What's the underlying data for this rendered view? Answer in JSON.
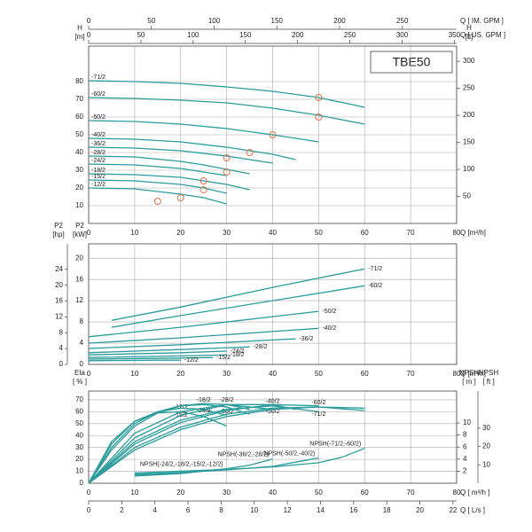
{
  "chart_data": [
    {
      "type": "line",
      "title": "TBE50",
      "color": "#2b9c9c",
      "grid": true,
      "x_label": "Q [m³/h]",
      "xlim": [
        0,
        80
      ],
      "xticks": [
        0,
        10,
        20,
        30,
        40,
        50,
        60,
        70,
        80
      ],
      "y_label": "H",
      "y_unit": "[m]",
      "ylim": [
        0,
        100
      ],
      "yticks": [
        10,
        20,
        30,
        40,
        50,
        60,
        70,
        80
      ],
      "y2_label": "H",
      "y2_unit": "[ft]",
      "y2lim": [
        0,
        328.1
      ],
      "y2ticks": [
        50,
        100,
        150,
        200,
        250,
        300
      ],
      "extra_axes": [
        {
          "side": "top",
          "label": "Q [ IM. GPM ]",
          "lim": [
            0,
            293.3
          ],
          "ticks": [
            0,
            50,
            100,
            150,
            200,
            250
          ]
        },
        {
          "side": "top2",
          "label": "Q [ US. GPM ]",
          "lim": [
            0,
            352.2
          ],
          "ticks": [
            0,
            50,
            100,
            150,
            200,
            250,
            300,
            350
          ]
        }
      ],
      "series": [
        {
          "name": "-71/2",
          "x": [
            0,
            10,
            20,
            30,
            40,
            50,
            60
          ],
          "values": [
            80.5,
            80,
            79,
            77,
            74.5,
            71,
            65.5
          ]
        },
        {
          "name": "-60/2",
          "x": [
            0,
            10,
            20,
            30,
            40,
            50,
            60
          ],
          "values": [
            71,
            70.5,
            69.5,
            68,
            65,
            61,
            56
          ]
        },
        {
          "name": "-50/2",
          "x": [
            0,
            10,
            20,
            30,
            40,
            50
          ],
          "values": [
            58,
            57.5,
            56,
            53.5,
            50,
            46
          ]
        },
        {
          "name": "-40/2",
          "x": [
            0,
            10,
            20,
            30,
            40,
            45
          ],
          "values": [
            48,
            47.5,
            46,
            43,
            39,
            36
          ]
        },
        {
          "name": "-36/2",
          "x": [
            0,
            10,
            20,
            30,
            35,
            40
          ],
          "values": [
            43,
            42.5,
            41,
            38,
            36,
            34
          ]
        },
        {
          "name": "-28/2",
          "x": [
            0,
            10,
            20,
            25,
            30,
            35
          ],
          "values": [
            38,
            37.5,
            35,
            33,
            30.5,
            28
          ]
        },
        {
          "name": "-24/2",
          "x": [
            0,
            10,
            20,
            25,
            30
          ],
          "values": [
            33.5,
            33,
            31,
            29,
            27
          ]
        },
        {
          "name": "-18/2",
          "x": [
            0,
            10,
            20,
            25,
            30,
            35
          ],
          "values": [
            28,
            27.5,
            26,
            24,
            22,
            19
          ]
        },
        {
          "name": "-15/2",
          "x": [
            0,
            10,
            20,
            25,
            30
          ],
          "values": [
            24.5,
            24,
            22,
            20,
            17
          ]
        },
        {
          "name": "-12/2",
          "x": [
            0,
            10,
            20,
            25,
            30
          ],
          "values": [
            20,
            19.5,
            16.5,
            14.5,
            11
          ]
        }
      ],
      "markers": {
        "color": "#d9764a",
        "x": [
          15,
          20,
          25,
          25,
          30,
          30,
          35,
          40,
          50,
          50
        ],
        "y": [
          12.5,
          14.5,
          19,
          24,
          29,
          37,
          40,
          50,
          60,
          71
        ]
      }
    },
    {
      "type": "line",
      "color": "#2b9c9c",
      "grid": true,
      "x_label": "Q [m³/h]",
      "xlim": [
        0,
        80
      ],
      "xticks": [
        0,
        10,
        20,
        30,
        40,
        50,
        60,
        70,
        80
      ],
      "y_label": "P2",
      "y_unit": "[kW]",
      "ylim": [
        0,
        22.7
      ],
      "yticks": [
        0,
        4,
        8,
        12,
        16,
        20
      ],
      "extra_axes": [
        {
          "side": "left-outer",
          "label": "P2",
          "unit": "[hp]",
          "lim": [
            0,
            30.44
          ],
          "ticks": [
            0,
            4,
            8,
            12,
            16,
            20,
            24
          ]
        }
      ],
      "series": [
        {
          "name": "-71/2",
          "x": [
            5,
            20,
            40,
            60
          ],
          "values": [
            8.3,
            10.8,
            14.5,
            18
          ]
        },
        {
          "name": "-60/2",
          "x": [
            5,
            20,
            40,
            60
          ],
          "values": [
            7,
            9.2,
            12,
            14.8
          ]
        },
        {
          "name": "-50/2",
          "x": [
            0,
            20,
            40,
            50
          ],
          "values": [
            5.2,
            7,
            9,
            10
          ]
        },
        {
          "name": "-40/2",
          "x": [
            0,
            20,
            40,
            50
          ],
          "values": [
            4,
            5,
            6.2,
            6.8
          ]
        },
        {
          "name": "-36/2",
          "x": [
            0,
            20,
            40,
            45
          ],
          "values": [
            3,
            3.7,
            4.6,
            4.8
          ]
        },
        {
          "name": "-28/2",
          "x": [
            0,
            20,
            35
          ],
          "values": [
            2.2,
            2.8,
            3.3
          ]
        },
        {
          "name": "-24/2",
          "x": [
            0,
            20,
            30
          ],
          "values": [
            1.8,
            2.2,
            2.5
          ]
        },
        {
          "name": "-18/2",
          "x": [
            0,
            20,
            30
          ],
          "values": [
            1.3,
            1.6,
            1.8
          ]
        },
        {
          "name": "-15/2",
          "x": [
            0,
            20,
            27
          ],
          "values": [
            1,
            1.2,
            1.3
          ]
        },
        {
          "name": "-12/2",
          "x": [
            0,
            15,
            20
          ],
          "values": [
            0.7,
            0.8,
            0.8
          ]
        }
      ]
    },
    {
      "type": "line",
      "color": "#2b9c9c",
      "grid": true,
      "x_label": "Q [ m³/h ]",
      "xlim": [
        0,
        80
      ],
      "xticks": [
        0,
        10,
        20,
        30,
        40,
        50,
        60,
        70,
        80
      ],
      "y_label": "Eta",
      "y_unit": "[ % ]",
      "ylim": [
        0,
        77.4
      ],
      "yticks": [
        0,
        10,
        20,
        30,
        40,
        50,
        60,
        70
      ],
      "y2_label": "NPSH",
      "y2_unit": "[ m ]",
      "y2lim": [
        0,
        15.3
      ],
      "y2ticks": [
        2,
        4,
        6,
        8,
        10
      ],
      "extra_axes": [
        {
          "side": "right-outer",
          "label": "NPSH",
          "unit": "[ ft ]",
          "lim": [
            0,
            50.2
          ],
          "ticks": [
            10,
            20,
            30
          ]
        },
        {
          "side": "bottom2",
          "label": "Q [ L/s ]",
          "lim": [
            0,
            22.22
          ],
          "ticks": [
            0,
            2,
            4,
            6,
            8,
            10,
            12,
            14,
            16,
            18,
            20,
            22
          ]
        }
      ],
      "series": [
        {
          "name": "-12/2",
          "x": [
            0,
            5,
            10,
            15,
            20,
            25,
            30
          ],
          "values": [
            0,
            35,
            52,
            59,
            60,
            56,
            48
          ]
        },
        {
          "name": "-15/2",
          "x": [
            0,
            5,
            10,
            15,
            20,
            25,
            30
          ],
          "values": [
            0,
            33,
            52,
            60,
            63,
            62,
            57
          ]
        },
        {
          "name": "-18/2",
          "x": [
            0,
            5,
            10,
            15,
            20,
            25,
            30,
            35
          ],
          "values": [
            0,
            30,
            50,
            60,
            65,
            66,
            64,
            58
          ]
        },
        {
          "name": "-24/2",
          "x": [
            0,
            5,
            10,
            15,
            20,
            25,
            30,
            35
          ],
          "values": [
            0,
            28,
            48,
            59,
            65,
            67,
            66,
            62
          ]
        },
        {
          "name": "-28/2",
          "x": [
            0,
            10,
            20,
            30,
            40
          ],
          "values": [
            0,
            42,
            60,
            66,
            62
          ]
        },
        {
          "name": "-36/2",
          "x": [
            0,
            10,
            20,
            30,
            40,
            45
          ],
          "values": [
            0,
            38,
            57,
            66,
            66,
            62
          ]
        },
        {
          "name": "-40/2",
          "x": [
            0,
            10,
            20,
            30,
            40,
            50
          ],
          "values": [
            0,
            35,
            53,
            62,
            65,
            60
          ]
        },
        {
          "name": "-50/2",
          "x": [
            0,
            10,
            20,
            30,
            40,
            50
          ],
          "values": [
            0,
            33,
            51,
            61,
            66,
            65
          ]
        },
        {
          "name": "-60/2",
          "x": [
            0,
            10,
            20,
            30,
            40,
            50,
            60
          ],
          "values": [
            0,
            30,
            47,
            58,
            63,
            64,
            61
          ]
        },
        {
          "name": "-71/2",
          "x": [
            0,
            10,
            20,
            30,
            40,
            50,
            60
          ],
          "values": [
            0,
            28,
            45,
            56,
            62,
            64,
            63
          ]
        },
        {
          "name": "NPSH(-24/2,-18/2,-15/2,-12/2)",
          "axis": "y2",
          "x": [
            10,
            20,
            30
          ],
          "values": [
            1.2,
            1.6,
            2.4
          ]
        },
        {
          "name": "NPSH(-36/2,-28/2)",
          "axis": "y2",
          "x": [
            10,
            20,
            30,
            35,
            40
          ],
          "values": [
            1.3,
            1.7,
            2.4,
            3,
            4
          ]
        },
        {
          "name": "NPSH(-50/2,-40/2)",
          "axis": "y2",
          "x": [
            10,
            20,
            30,
            40,
            45,
            50
          ],
          "values": [
            1.5,
            1.8,
            2.2,
            2.8,
            3.5,
            4.2
          ]
        },
        {
          "name": "NPSH(-71/2,-60/2)",
          "axis": "y2",
          "x": [
            10,
            20,
            30,
            40,
            50,
            55,
            60
          ],
          "values": [
            1.7,
            2,
            2.3,
            2.7,
            3.4,
            4.3,
            5.8
          ]
        }
      ]
    }
  ]
}
